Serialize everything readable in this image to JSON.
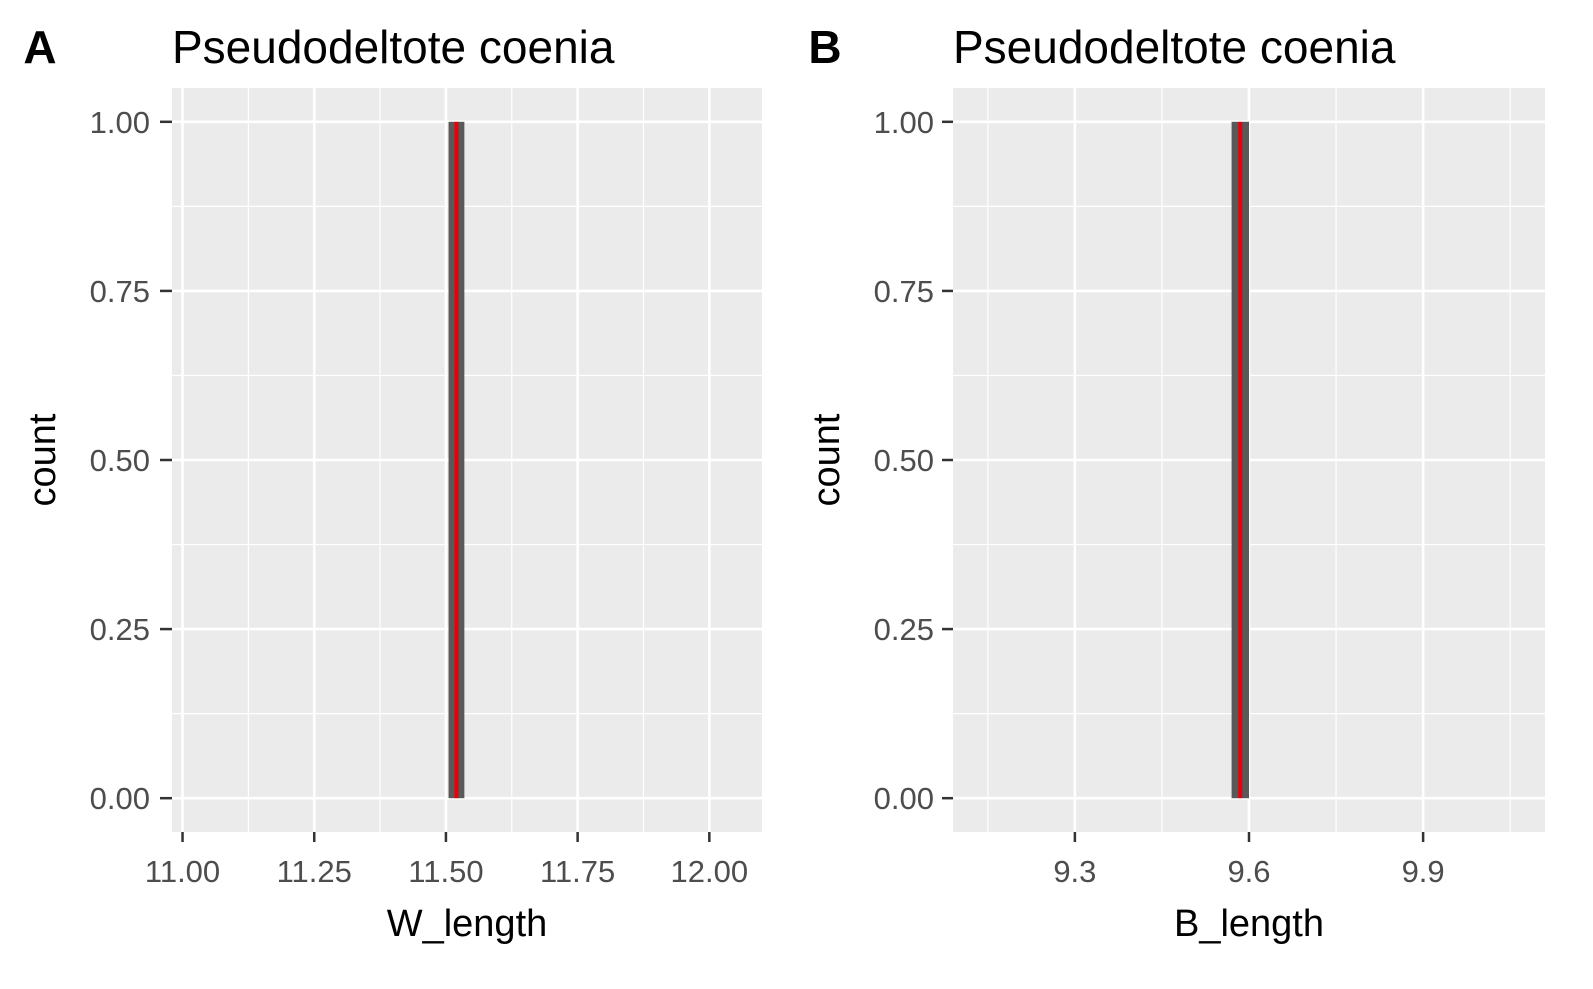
{
  "chart_data": [
    {
      "panel_label": "A",
      "type": "bar",
      "title": "Pseudodeltote coenia",
      "xlabel": "W_length",
      "ylabel": "count",
      "xlim": [
        10.98,
        12.1
      ],
      "ylim": [
        -0.05,
        1.05
      ],
      "x_ticks": [
        {
          "value": 11.0,
          "label": "11.00"
        },
        {
          "value": 11.25,
          "label": "11.25"
        },
        {
          "value": 11.5,
          "label": "11.50"
        },
        {
          "value": 11.75,
          "label": "11.75"
        },
        {
          "value": 12.0,
          "label": "12.00"
        }
      ],
      "y_ticks": [
        {
          "value": 0,
          "label": "0.00"
        },
        {
          "value": 0.25,
          "label": "0.25"
        },
        {
          "value": 0.5,
          "label": "0.50"
        },
        {
          "value": 0.75,
          "label": "0.75"
        },
        {
          "value": 1.0,
          "label": "1.00"
        }
      ],
      "bars": [
        {
          "xmin": 11.505,
          "xmax": 11.535,
          "count": 1
        }
      ],
      "reference_line": {
        "x": 11.52,
        "color": "#e8000b"
      },
      "grid": true
    },
    {
      "panel_label": "B",
      "type": "bar",
      "title": "Pseudodeltote coenia",
      "xlabel": "B_length",
      "ylabel": "count",
      "xlim": [
        9.09,
        10.11
      ],
      "ylim": [
        -0.05,
        1.05
      ],
      "x_ticks": [
        {
          "value": 9.3,
          "label": "9.3"
        },
        {
          "value": 9.6,
          "label": "9.6"
        },
        {
          "value": 9.9,
          "label": "9.9"
        }
      ],
      "y_ticks": [
        {
          "value": 0,
          "label": "0.00"
        },
        {
          "value": 0.25,
          "label": "0.25"
        },
        {
          "value": 0.5,
          "label": "0.50"
        },
        {
          "value": 0.75,
          "label": "0.75"
        },
        {
          "value": 1.0,
          "label": "1.00"
        }
      ],
      "bars": [
        {
          "xmin": 9.57,
          "xmax": 9.6,
          "count": 1
        }
      ],
      "reference_line": {
        "x": 9.585,
        "color": "#e8000b"
      },
      "grid": true
    }
  ],
  "colors": {
    "panel_background": "#ebebeb",
    "grid_line": "#ffffff",
    "bar_fill": "#595959",
    "tick_text": "#4d4d4d",
    "title_text": "#000000"
  }
}
